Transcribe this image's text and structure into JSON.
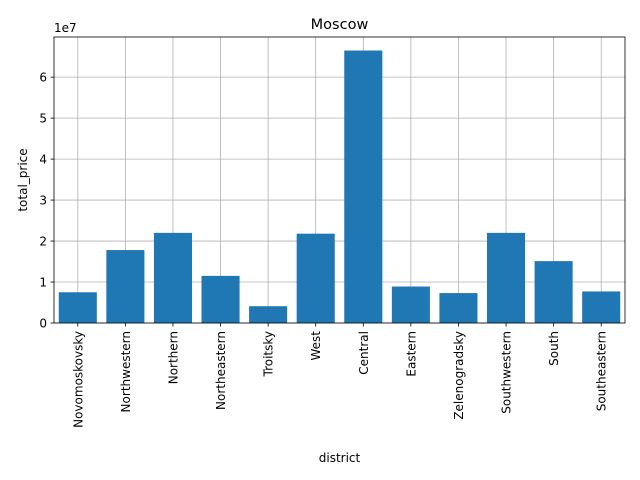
{
  "chart_data": {
    "type": "bar",
    "title": "Moscow",
    "xlabel": "district",
    "ylabel": "total_price",
    "scale_label": "1e7",
    "categories": [
      "Novomoskovsky",
      "Northwestern",
      "Northern",
      "Northeastern",
      "Troitsky",
      "West",
      "Central",
      "Eastern",
      "Zelenogradsky",
      "Southwestern",
      "South",
      "Southeastern"
    ],
    "values": [
      7500000,
      17800000,
      22000000,
      11500000,
      4100000,
      21800000,
      66500000,
      8900000,
      7300000,
      22000000,
      15100000,
      7700000
    ],
    "ylim": [
      0,
      69800000
    ],
    "yticks": [
      0,
      10000000,
      20000000,
      30000000,
      40000000,
      50000000,
      60000000
    ],
    "ytick_labels": [
      "0",
      "1",
      "2",
      "3",
      "4",
      "5",
      "6"
    ],
    "bar_color": "#1f77b4",
    "grid": true,
    "legend": "none"
  }
}
